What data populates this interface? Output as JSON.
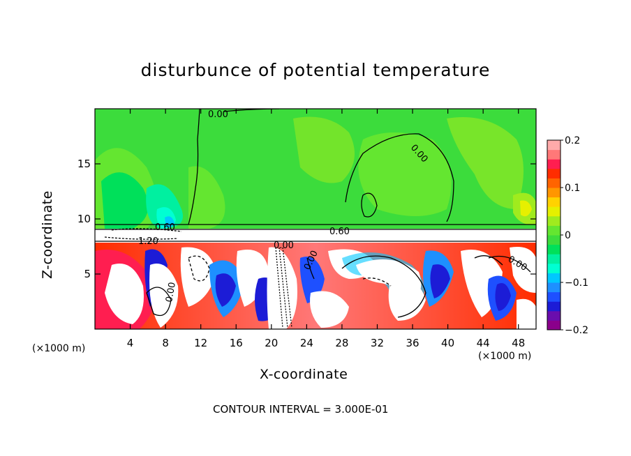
{
  "chart_data": {
    "type": "heatmap",
    "title": "disturbunce of potential temperature",
    "xlabel": "X-coordinate",
    "ylabel": "Z-coordinate",
    "x_unit": "(×1000 m)",
    "x_ticks": [
      4,
      8,
      12,
      16,
      20,
      24,
      28,
      32,
      36,
      40,
      44,
      48
    ],
    "y_ticks": [
      5,
      10,
      15
    ],
    "xlim": [
      0,
      50
    ],
    "ylim": [
      0,
      20
    ],
    "colorbar": {
      "ticks": [
        "0.2",
        "0.1",
        "0",
        "−0.1",
        "−0.2"
      ],
      "range": [
        -0.2,
        0.2
      ],
      "colors": [
        "#8b008b",
        "#6a0dad",
        "#1c1cd6",
        "#1e50ff",
        "#1e90ff",
        "#00c8ff",
        "#00ffd2",
        "#00f0a0",
        "#00e05a",
        "#3cdc3c",
        "#64e630",
        "#a0eb1e",
        "#e6f000",
        "#ffd200",
        "#ff9600",
        "#ff6400",
        "#ff2d00",
        "#ff1e50",
        "#ff7878",
        "#ffaaaa"
      ]
    },
    "contour_labels": [
      "0.00",
      "0.00",
      "0.60",
      "0.60",
      "1.20",
      "0.00",
      "0.00",
      "0.00",
      "0.00"
    ],
    "contour_interval": "CONTOUR INTERVAL = 3.000E-01"
  }
}
